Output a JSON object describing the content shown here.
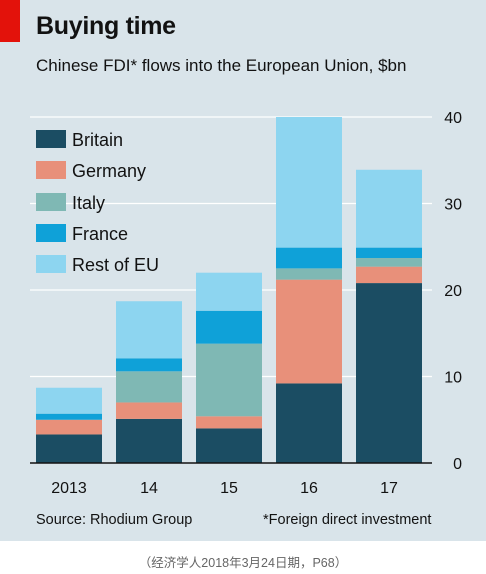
{
  "header": {
    "title": "Buying time",
    "subtitle": "Chinese FDI* flows into the European Union, $bn"
  },
  "footer": {
    "source": "Source: Rhodium Group",
    "footnote": "*Foreign direct investment"
  },
  "caption": "（经济学人2018年3月24日期，P68）",
  "colors": {
    "background": "#d9e4ea",
    "grid": "#ffffff",
    "accent_tag": "#e3120b",
    "Britain": "#1b4d63",
    "Germany": "#e8907a",
    "Italy": "#7fb8b4",
    "France": "#0fa1d8",
    "Rest of EU": "#8dd5f0"
  },
  "chart_data": {
    "type": "bar",
    "stacked": true,
    "categories": [
      "2013",
      "14",
      "15",
      "16",
      "17"
    ],
    "series": [
      {
        "name": "Britain",
        "values": [
          3.3,
          5.1,
          4.0,
          9.2,
          20.8
        ]
      },
      {
        "name": "Germany",
        "values": [
          1.7,
          1.9,
          1.4,
          12.0,
          1.9
        ]
      },
      {
        "name": "Italy",
        "values": [
          0.0,
          3.6,
          8.4,
          1.3,
          1.0
        ]
      },
      {
        "name": "France",
        "values": [
          0.7,
          1.5,
          3.8,
          2.4,
          1.2
        ]
      },
      {
        "name": "Rest of EU",
        "values": [
          3.0,
          6.6,
          4.4,
          15.1,
          9.0
        ]
      }
    ],
    "yticks": [
      0,
      10,
      20,
      30,
      40
    ],
    "ylim": [
      0,
      40
    ],
    "y_axis_side": "right",
    "grid": true,
    "legend_position": "top-left"
  }
}
